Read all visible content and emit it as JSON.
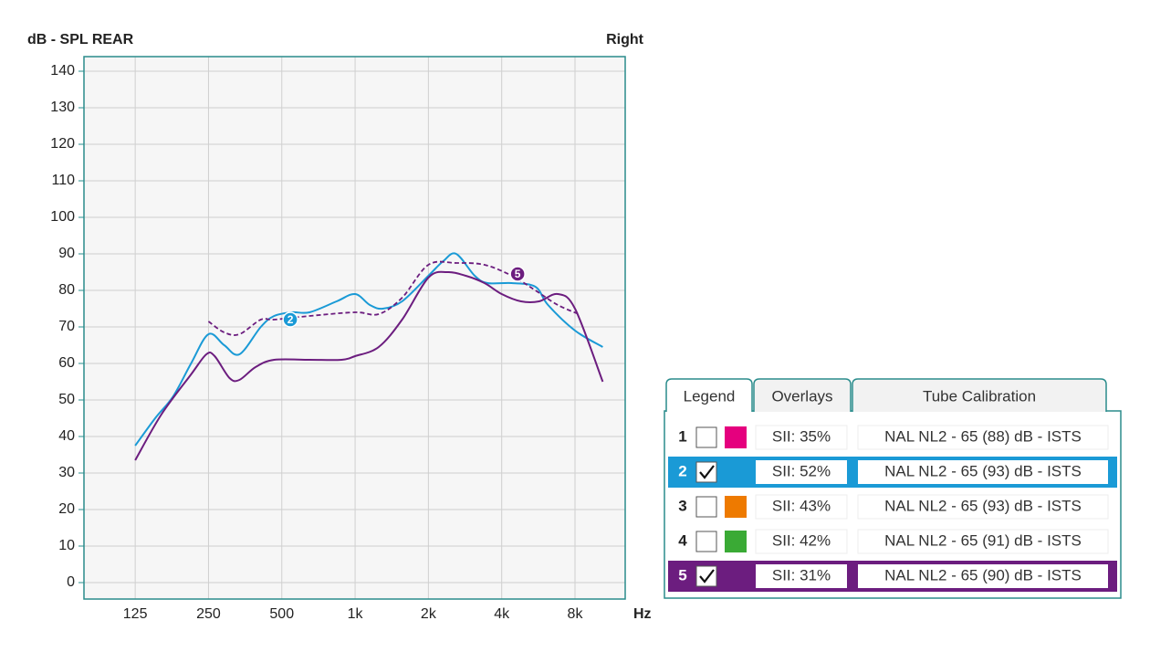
{
  "chart_data": {
    "type": "line",
    "title": "dB - SPL REAR",
    "side_label": "Right",
    "x_label": "Hz",
    "xscale": "log",
    "grid": true,
    "xlim": [
      77,
      12860
    ],
    "ylim": [
      -4.5,
      144
    ],
    "xticks": [
      125,
      250,
      500,
      {
        "value": 1000,
        "label": "1k"
      },
      {
        "value": 2000,
        "label": "2k"
      },
      {
        "value": 4000,
        "label": "4k"
      },
      {
        "value": 8000,
        "label": "8k"
      }
    ],
    "yticks": [
      0,
      10,
      20,
      30,
      40,
      50,
      60,
      70,
      80,
      90,
      100,
      110,
      120,
      130,
      140
    ],
    "series": [
      {
        "color": "#1a9ad6",
        "dash": false,
        "x": [
          125,
          151,
          179,
          212,
          250,
          290,
          335,
          410,
          465,
          550,
          650,
          840,
          1000,
          1150,
          1300,
          1560,
          2000,
          2300,
          2600,
          3100,
          3500,
          4400,
          5500,
          6200,
          8000,
          10400
        ],
        "values": [
          37.5,
          45,
          51,
          60,
          68,
          65,
          62.5,
          70,
          73,
          74,
          74,
          77,
          79,
          76,
          75,
          77,
          84,
          88,
          90,
          84,
          82,
          82,
          81,
          76,
          69,
          64.5
        ]
      },
      {
        "color": "#6c1d7f",
        "dash": false,
        "x": [
          125,
          160,
          212,
          245,
          265,
          305,
          335,
          390,
          465,
          650,
          880,
          1000,
          1250,
          1560,
          2000,
          2400,
          2850,
          3400,
          4000,
          4800,
          5700,
          6800,
          8000,
          10400
        ],
        "values": [
          33.5,
          46,
          57,
          62.5,
          62,
          56,
          55.5,
          59,
          61,
          61,
          61,
          62,
          64.5,
          72,
          83.5,
          85,
          84,
          82,
          79,
          77,
          77,
          79,
          75,
          55
        ]
      },
      {
        "color": "#6c1d7f",
        "dash": true,
        "x": [
          250,
          290,
          335,
          410,
          465,
          650,
          1000,
          1250,
          1560,
          2000,
          2600,
          3400,
          4400,
          5500,
          6800,
          8300
        ],
        "values": [
          71.5,
          68.5,
          68,
          72,
          72,
          73,
          74,
          73.5,
          78,
          87,
          87.5,
          87,
          84,
          80,
          76,
          73.5
        ]
      }
    ],
    "annotations": [
      {
        "text": "2",
        "x": 542,
        "y": 72,
        "color": "#1a9ad6"
      },
      {
        "text": "5",
        "x": 4650,
        "y": 84.5,
        "color": "#6c1d7f"
      }
    ]
  },
  "legend_panel": {
    "tabs": [
      "Legend",
      "Overlays",
      "Tube Calibration"
    ],
    "active_tab": 0,
    "rows": [
      {
        "number": 1,
        "checked": false,
        "color": "#e5007e",
        "highlight": null,
        "sii": "SII: 35%",
        "label": "NAL NL2 - 65 (88) dB - ISTS"
      },
      {
        "number": 2,
        "checked": true,
        "color": null,
        "highlight": "#1a9ad6",
        "sii": "SII: 52%",
        "label": "NAL NL2 - 65 (93) dB - ISTS"
      },
      {
        "number": 3,
        "checked": false,
        "color": "#ee7a00",
        "highlight": null,
        "sii": "SII: 43%",
        "label": "NAL NL2 - 65 (93) dB - ISTS"
      },
      {
        "number": 4,
        "checked": false,
        "color": "#3aaa35",
        "highlight": null,
        "sii": "SII: 42%",
        "label": "NAL NL2 - 65 (91) dB - ISTS"
      },
      {
        "number": 5,
        "checked": true,
        "color": null,
        "highlight": "#6c1d7f",
        "sii": "SII: 31%",
        "label": "NAL NL2 - 65 (90) dB - ISTS"
      }
    ]
  }
}
